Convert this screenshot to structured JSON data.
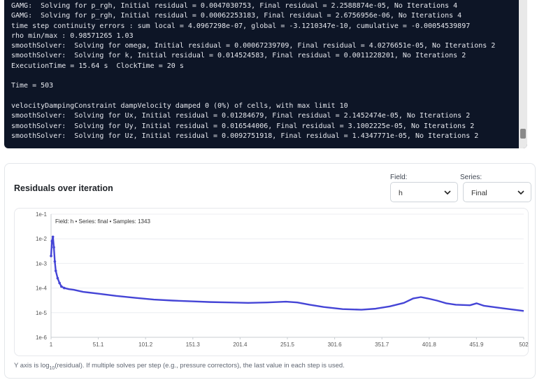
{
  "terminal": {
    "lines": [
      "GAMG:  Solving for p_rgh, Initial residual = 0.0047030753, Final residual = 2.2588874e-05, No Iterations 4",
      "GAMG:  Solving for p_rgh, Initial residual = 0.00062253183, Final residual = 2.6756956e-06, No Iterations 4",
      "time step continuity errors : sum local = 4.0967298e-07, global = -3.1210347e-10, cumulative = -0.00054539897",
      "rho min/max : 0.98571265 1.03",
      "smoothSolver:  Solving for omega, Initial residual = 0.00067239709, Final residual = 4.0276651e-05, No Iterations 2",
      "smoothSolver:  Solving for k, Initial residual = 0.014524583, Final residual = 0.0011228201, No Iterations 2",
      "ExecutionTime = 15.64 s  ClockTime = 20 s",
      "",
      "Time = 503",
      "",
      "velocityDampingConstraint dampVelocity damped 0 (0%) of cells, with max limit 10",
      "smoothSolver:  Solving for Ux, Initial residual = 0.01284679, Final residual = 2.1452474e-05, No Iterations 2",
      "smoothSolver:  Solving for Uy, Initial residual = 0.016544006, Final residual = 3.1002225e-05, No Iterations 2",
      "smoothSolver:  Solving for Uz, Initial residual = 0.0092751918, Final residual = 1.4347771e-05, No Iterations 2"
    ]
  },
  "panel": {
    "title": "Residuals over iteration",
    "field_label": "Field:",
    "field_value": "h",
    "series_label": "Series:",
    "series_value": "Final",
    "caption_pre": "Y axis is log",
    "caption_sub": "10",
    "caption_post": "(residual). If multiple solves per step (e.g., pressure correctors), the last value in each step is used."
  },
  "chart_data": {
    "type": "line",
    "tooltip": "Field: h • Series: final • Samples: 1343",
    "line_color": "#4545d6",
    "xlim": [
      1,
      502
    ],
    "x_ticks": [
      "1",
      "51.1",
      "101.2",
      "151.3",
      "201.4",
      "251.5",
      "301.6",
      "351.7",
      "401.8",
      "451.9",
      "502"
    ],
    "y_ticks": [
      "1e-1",
      "1e-2",
      "1e-3",
      "1e-4",
      "1e-5",
      "1e-6"
    ],
    "ylim_log10": [
      -6,
      -1
    ],
    "log_scale": true,
    "grid": "horizontal",
    "x": [
      1,
      2,
      3,
      4,
      5,
      6,
      8,
      10,
      12,
      15,
      20,
      25,
      35,
      50,
      70,
      90,
      110,
      130,
      150,
      170,
      190,
      210,
      230,
      250,
      262,
      275,
      290,
      310,
      330,
      345,
      360,
      375,
      385,
      393,
      400,
      410,
      420,
      430,
      445,
      452,
      460,
      480,
      502
    ],
    "y": [
      0.002,
      0.008,
      0.012,
      0.0045,
      0.0012,
      0.0005,
      0.00025,
      0.00016,
      0.000115,
      0.0001,
      9e-05,
      8.5e-05,
      7e-05,
      6e-05,
      4.8e-05,
      4e-05,
      3.4e-05,
      3.1e-05,
      2.9e-05,
      2.7e-05,
      2.6e-05,
      2.5e-05,
      2.6e-05,
      2.8e-05,
      2.6e-05,
      2.1e-05,
      1.7e-05,
      1.4e-05,
      1.32e-05,
      1.45e-05,
      1.8e-05,
      2.5e-05,
      3.8e-05,
      4.3e-05,
      3.8e-05,
      3.1e-05,
      2.4e-05,
      2.1e-05,
      2e-05,
      2.4e-05,
      1.9e-05,
      1.5e-05,
      1.18e-05
    ]
  }
}
